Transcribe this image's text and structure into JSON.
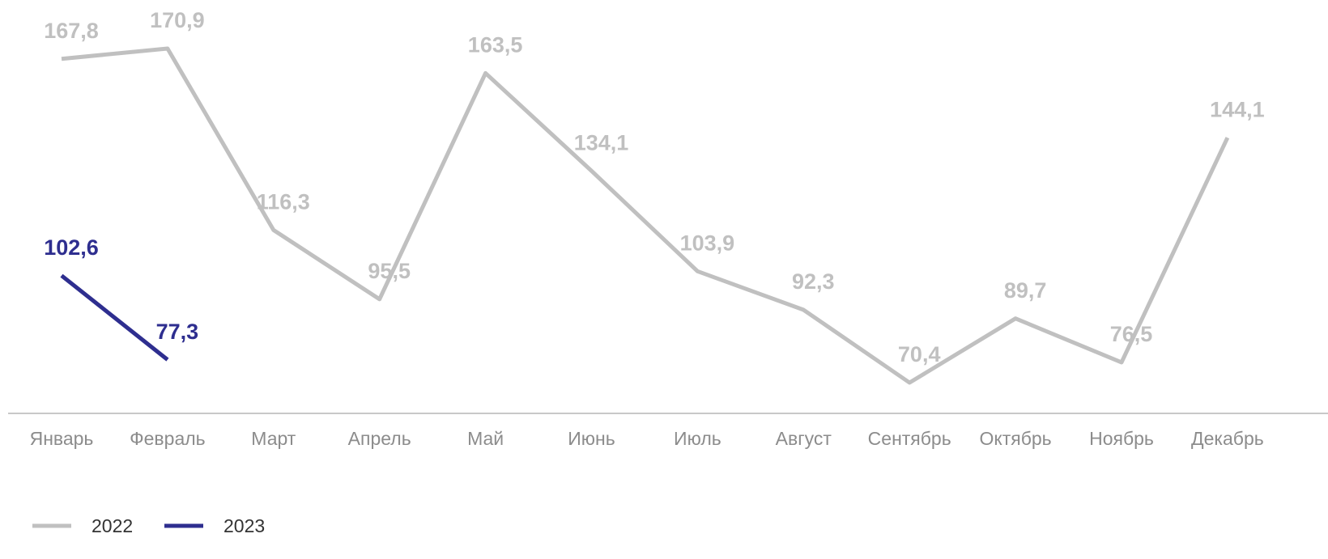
{
  "chart_data": {
    "type": "line",
    "categories": [
      "Январь",
      "Февраль",
      "Март",
      "Апрель",
      "Май",
      "Июнь",
      "Июль",
      "Август",
      "Сентябрь",
      "Октябрь",
      "Ноябрь",
      "Декабрь"
    ],
    "series": [
      {
        "name": "2022",
        "color": "#c0c0c0",
        "values": [
          167.8,
          170.9,
          116.3,
          95.5,
          163.5,
          134.1,
          103.9,
          92.3,
          70.4,
          89.7,
          76.5,
          144.1
        ],
        "value_labels": [
          "167,8",
          "170,9",
          "116,3",
          "95,5",
          "163,5",
          "134,1",
          "103,9",
          "92,3",
          "70,4",
          "89,7",
          "76,5",
          "144,1"
        ]
      },
      {
        "name": "2023",
        "color": "#2e2e8f",
        "values": [
          102.6,
          77.3,
          null,
          null,
          null,
          null,
          null,
          null,
          null,
          null,
          null,
          null
        ],
        "value_labels": [
          "102,6",
          "77,3",
          null,
          null,
          null,
          null,
          null,
          null,
          null,
          null,
          null,
          null
        ]
      }
    ],
    "legend": "bottom-left"
  }
}
